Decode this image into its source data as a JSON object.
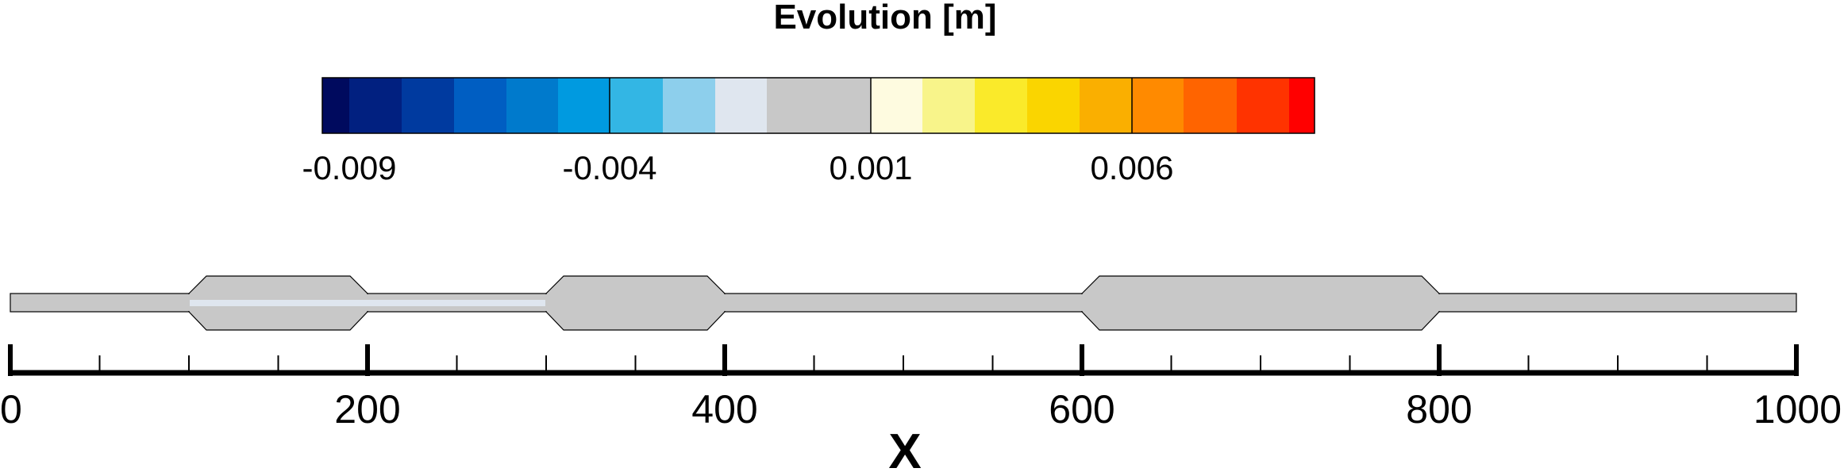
{
  "colorbar": {
    "title": "Evolution [m]",
    "colors": [
      "#000a5e",
      "#012080",
      "#003a9f",
      "#005ec2",
      "#007acc",
      "#009ae0",
      "#33b6e4",
      "#8dcfec",
      "#dfe6ef",
      "#c8c8c8",
      "#fefbe0",
      "#f8f48a",
      "#faea2a",
      "#fad500",
      "#faaf00",
      "#ff8a00",
      "#ff6400",
      "#ff3300",
      "#ff0000"
    ],
    "tick_labels": [
      "-0.009",
      "-0.004",
      "0.001",
      "0.006"
    ]
  },
  "chart_data": {
    "type": "channel-contour",
    "variable": "Evolution [m]",
    "xlabel": "X",
    "xlim": [
      0,
      1000
    ],
    "major_ticks": [
      0,
      200,
      400,
      600,
      800,
      1000
    ],
    "tick_labels": [
      "0",
      "200",
      "400",
      "600",
      "800",
      "1000"
    ],
    "minor_tick_step": 50,
    "channel": {
      "fill_color": "#c8c8c8",
      "segments": [
        {
          "kind": "narrow",
          "x": [
            0,
            100
          ]
        },
        {
          "kind": "basin",
          "x": [
            100,
            200
          ]
        },
        {
          "kind": "narrow",
          "x": [
            200,
            300
          ]
        },
        {
          "kind": "basin",
          "x": [
            300,
            400
          ]
        },
        {
          "kind": "narrow",
          "x": [
            400,
            600
          ]
        },
        {
          "kind": "basin",
          "x": [
            600,
            800
          ]
        },
        {
          "kind": "narrow",
          "x": [
            800,
            1000
          ]
        }
      ],
      "highlight": {
        "x": [
          100,
          300
        ],
        "color": "#dfe6ef",
        "note_value_range": "-0.002 to -0.001"
      }
    }
  }
}
